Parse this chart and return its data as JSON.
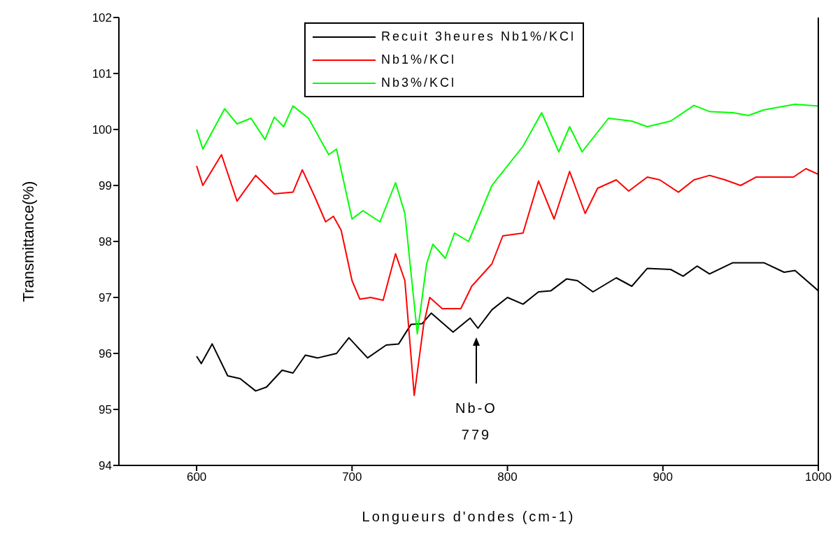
{
  "chart_data": {
    "type": "line",
    "xlabel": "Longueurs d'ondes (cm-1)",
    "ylabel": "Transmittance(%)",
    "xlim": [
      550,
      1000
    ],
    "xticks": [
      600,
      700,
      800,
      900,
      1000
    ],
    "ylim": [
      94,
      102
    ],
    "yticks": [
      94,
      95,
      96,
      97,
      98,
      99,
      100,
      101,
      102
    ],
    "grid": false,
    "legend": "top",
    "marker": "none",
    "line_style": "solid",
    "annotations": [
      "Nb-O",
      "779"
    ],
    "series": [
      {
        "name": "Recuit 3heures Nb1%/KCl",
        "color": "#000000",
        "x": [
          600,
          603,
          610,
          620,
          628,
          638,
          645,
          655,
          662,
          670,
          678,
          690,
          698,
          710,
          722,
          730,
          738,
          745,
          751,
          765,
          776,
          781,
          790,
          800,
          810,
          820,
          828,
          838,
          845,
          855,
          870,
          880,
          890,
          905,
          913,
          922,
          930,
          945,
          965,
          978,
          985,
          1000
        ],
        "values": [
          95.95,
          95.82,
          96.17,
          95.6,
          95.55,
          95.33,
          95.4,
          95.7,
          95.65,
          95.97,
          95.92,
          96.0,
          96.28,
          95.92,
          96.15,
          96.17,
          96.52,
          96.53,
          96.72,
          96.38,
          96.63,
          96.45,
          96.78,
          97.0,
          96.88,
          97.1,
          97.12,
          97.33,
          97.3,
          97.1,
          97.35,
          97.2,
          97.52,
          97.5,
          97.38,
          97.56,
          97.42,
          97.62,
          97.62,
          97.45,
          97.48,
          97.12
        ]
      },
      {
        "name": "Nb1%/KCl",
        "color": "#ff0000",
        "x": [
          600,
          604,
          616,
          626,
          638,
          650,
          662,
          668,
          676,
          683,
          688,
          693,
          700,
          705,
          712,
          720,
          728,
          734,
          740,
          746,
          750,
          758,
          770,
          777,
          790,
          797,
          810,
          820,
          830,
          840,
          850,
          858,
          870,
          878,
          890,
          898,
          910,
          920,
          930,
          940,
          950,
          960,
          984,
          992,
          1000
        ],
        "values": [
          99.35,
          99.0,
          99.55,
          98.72,
          99.18,
          98.85,
          98.88,
          99.28,
          98.8,
          98.35,
          98.45,
          98.2,
          97.3,
          96.97,
          97.0,
          96.95,
          97.78,
          97.3,
          95.25,
          96.5,
          97.0,
          96.8,
          96.8,
          97.2,
          97.6,
          98.1,
          98.15,
          99.08,
          98.4,
          99.25,
          98.5,
          98.95,
          99.1,
          98.9,
          99.15,
          99.1,
          98.88,
          99.1,
          99.18,
          99.1,
          99.0,
          99.15,
          99.15,
          99.3,
          99.2
        ]
      },
      {
        "name": "Nb3%/KCl",
        "color": "#00ff00",
        "x": [
          600,
          604,
          618,
          626,
          635,
          644,
          650,
          656,
          662,
          672,
          685,
          690,
          700,
          707,
          718,
          728,
          734,
          742,
          748,
          752,
          760,
          766,
          775,
          790,
          810,
          822,
          833,
          840,
          848,
          865,
          880,
          890,
          905,
          920,
          930,
          945,
          955,
          965,
          985,
          1000
        ],
        "values": [
          100.0,
          99.65,
          100.37,
          100.1,
          100.2,
          99.82,
          100.22,
          100.05,
          100.42,
          100.2,
          99.55,
          99.65,
          98.4,
          98.55,
          98.35,
          99.05,
          98.5,
          96.35,
          97.6,
          97.95,
          97.7,
          98.15,
          98.0,
          99.0,
          99.7,
          100.3,
          99.6,
          100.05,
          99.6,
          100.2,
          100.15,
          100.05,
          100.15,
          100.43,
          100.32,
          100.3,
          100.25,
          100.35,
          100.45,
          100.42
        ]
      }
    ]
  }
}
